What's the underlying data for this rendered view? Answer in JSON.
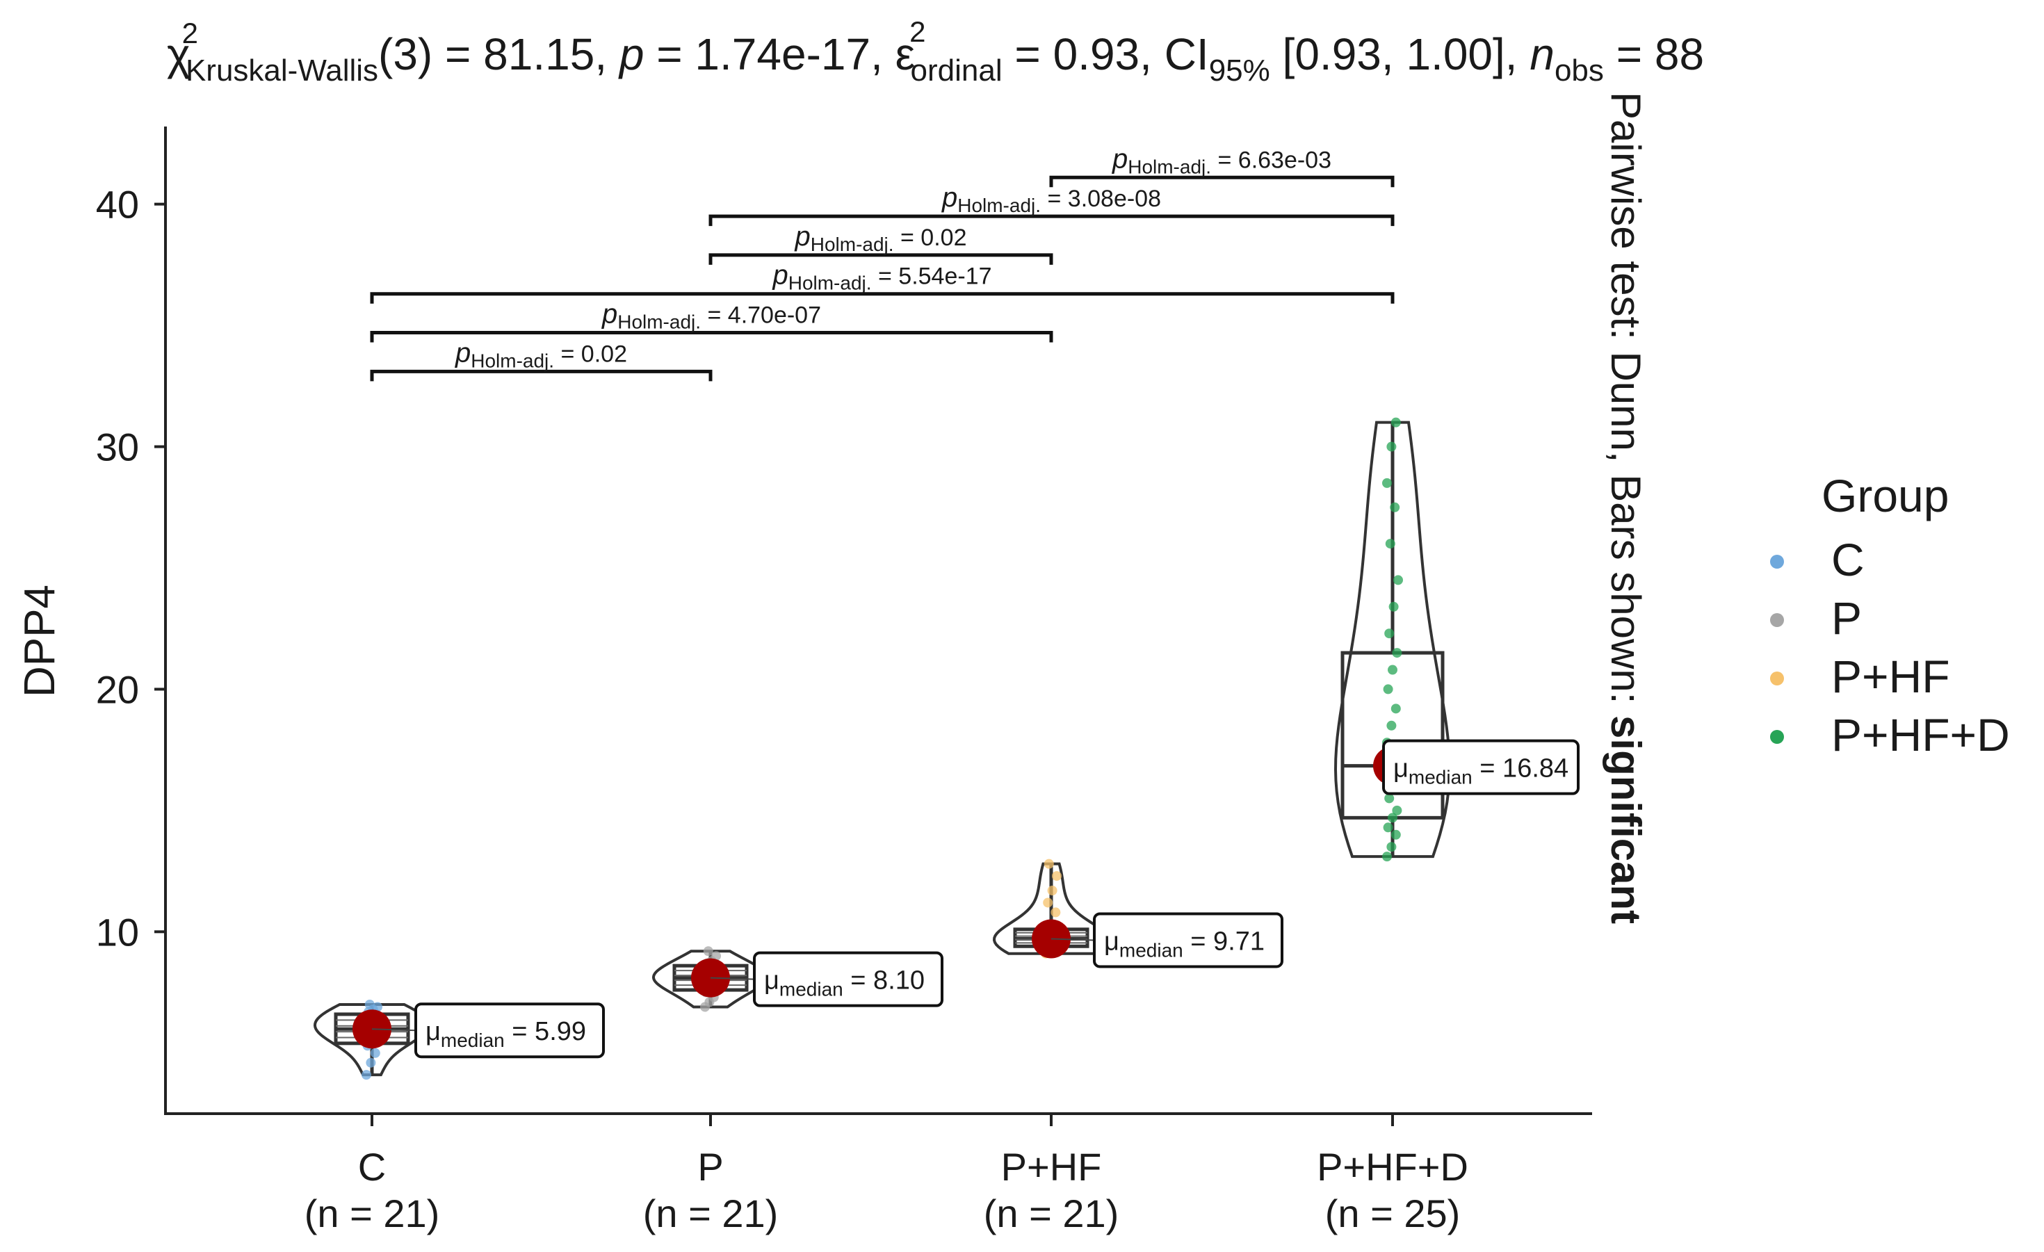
{
  "chart_data": {
    "type": "violin-box",
    "title": {
      "stat": "χ",
      "stat_sup": "2",
      "stat_sub": "Kruskal-Wallis",
      "df": "(3) = 81.15, ",
      "p_label": "p",
      "p_value": " = 1.74e-17, ",
      "eps": "ε",
      "eps_sup": "2",
      "eps_sub": "ordinal",
      "eps_value": " = 0.93, CI",
      "ci_sub": "95%",
      "ci_value": " [0.93, 1.00], ",
      "n_label": "n",
      "n_sub": "obs",
      "n_value": " = 88"
    },
    "ylabel": "DPP4",
    "xlabel": "",
    "ylim": [
      2.5,
      43.2
    ],
    "yticks": [
      10,
      20,
      30,
      40
    ],
    "categories": [
      "C",
      "P",
      "P+HF",
      "P+HF+D"
    ],
    "n_labels": [
      "(n = 21)",
      "(n = 21)",
      "(n = 21)",
      "(n = 25)"
    ],
    "colors": [
      "#6fa8dc",
      "#a6a6a6",
      "#f6c16b",
      "#27a456"
    ],
    "median_color": "#a50000",
    "groups": [
      {
        "name": "C",
        "median": 5.99,
        "q1": 5.4,
        "q3": 6.6,
        "min": 4.1,
        "max": 7.0,
        "points": [
          4.1,
          4.6,
          5.0,
          5.3,
          5.5,
          5.6,
          5.7,
          5.8,
          5.9,
          5.99,
          6.0,
          6.1,
          6.2,
          6.3,
          6.4,
          6.5,
          6.6,
          6.7,
          6.8,
          6.9,
          7.0
        ]
      },
      {
        "name": "P",
        "median": 8.1,
        "q1": 7.6,
        "q3": 8.6,
        "min": 6.9,
        "max": 9.2,
        "points": [
          6.9,
          7.1,
          7.3,
          7.5,
          7.6,
          7.7,
          7.8,
          7.9,
          8.0,
          8.05,
          8.1,
          8.15,
          8.2,
          8.3,
          8.4,
          8.5,
          8.6,
          8.7,
          8.8,
          9.0,
          9.2
        ]
      },
      {
        "name": "P+HF",
        "median": 9.71,
        "q1": 9.4,
        "q3": 10.1,
        "min": 9.1,
        "max": 12.8,
        "points": [
          9.1,
          9.2,
          9.3,
          9.4,
          9.45,
          9.5,
          9.6,
          9.65,
          9.7,
          9.71,
          9.75,
          9.8,
          9.9,
          10.0,
          10.1,
          10.3,
          10.8,
          11.2,
          11.7,
          12.3,
          12.8
        ]
      },
      {
        "name": "P+HF+D",
        "median": 16.84,
        "q1": 14.7,
        "q3": 21.5,
        "min": 13.1,
        "max": 31.0,
        "points": [
          13.1,
          13.5,
          14.0,
          14.3,
          14.7,
          15.0,
          15.5,
          16.0,
          16.4,
          16.84,
          17.2,
          17.8,
          18.5,
          19.2,
          20.0,
          20.8,
          21.5,
          22.3,
          23.4,
          24.5,
          26.0,
          27.5,
          28.5,
          30.0,
          31.0
        ]
      }
    ],
    "median_labels": [
      "= 5.99",
      "= 8.10",
      "= 9.71",
      "= 16.84"
    ],
    "median_label_prefix": "μ",
    "median_label_sub": "median",
    "comparisons": [
      {
        "from": 0,
        "to": 1,
        "y": 33.1,
        "p_prefix": "p",
        "p_sub": "Holm-adj.",
        "p_text": "= 0.02"
      },
      {
        "from": 0,
        "to": 2,
        "y": 34.7,
        "p_prefix": "p",
        "p_sub": "Holm-adj.",
        "p_text": "= 4.70e-07"
      },
      {
        "from": 0,
        "to": 3,
        "y": 36.3,
        "p_prefix": "p",
        "p_sub": "Holm-adj.",
        "p_text": "= 5.54e-17"
      },
      {
        "from": 1,
        "to": 2,
        "y": 37.9,
        "p_prefix": "p",
        "p_sub": "Holm-adj.",
        "p_text": "= 0.02"
      },
      {
        "from": 1,
        "to": 3,
        "y": 39.5,
        "p_prefix": "p",
        "p_sub": "Holm-adj.",
        "p_text": "= 3.08e-08"
      },
      {
        "from": 2,
        "to": 3,
        "y": 41.1,
        "p_prefix": "p",
        "p_sub": "Holm-adj.",
        "p_text": "= 6.63e-03"
      }
    ],
    "side_caption_plain": "Pairwise test: Dunn, Bars shown: ",
    "side_caption_bold": "significant",
    "legend": {
      "title": "Group",
      "placement": "right",
      "entries": [
        "C",
        "P",
        "P+HF",
        "P+HF+D"
      ]
    }
  }
}
